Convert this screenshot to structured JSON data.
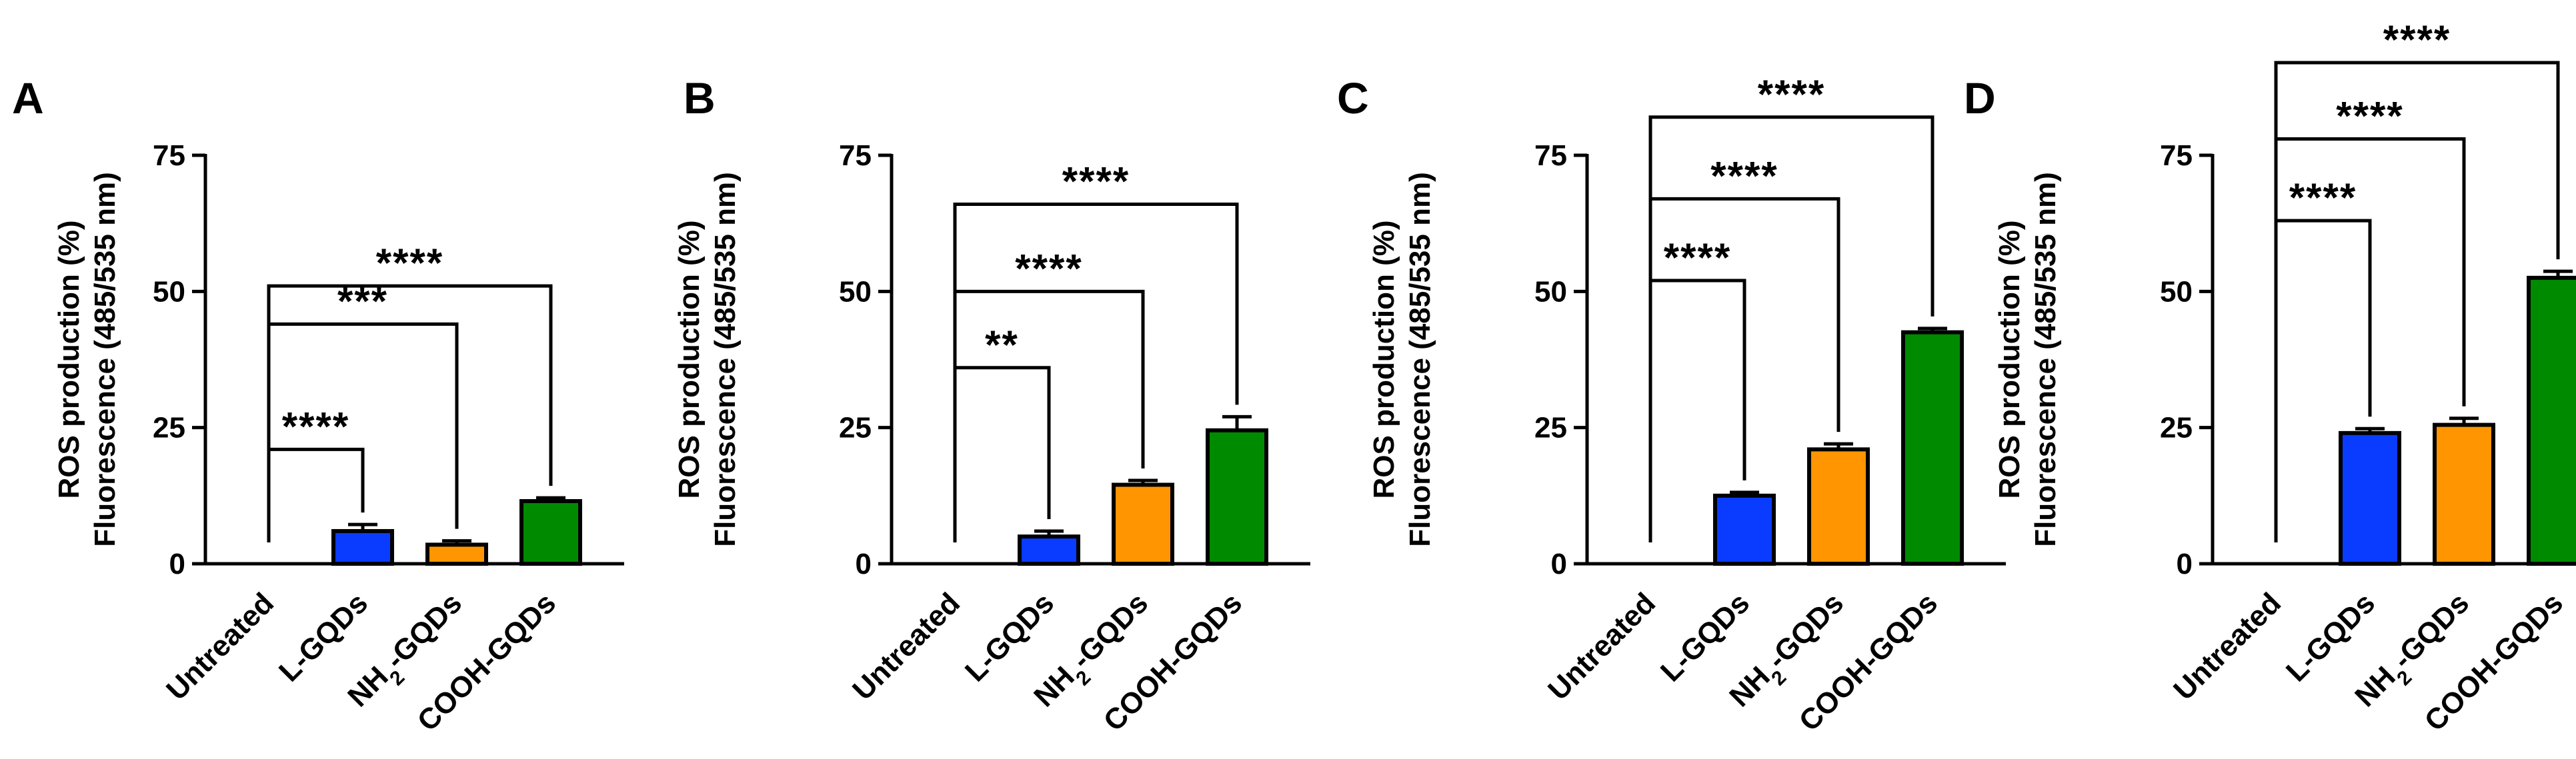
{
  "chart_data": [
    {
      "type": "bar",
      "panel": "A",
      "ylabel_line1": "ROS production (%)",
      "ylabel_line2": "Fluorescence (485/535 nm)",
      "categories": [
        {
          "main": "Untreated",
          "sub": "",
          "tail": ""
        },
        {
          "main": "L-GQDs",
          "sub": "",
          "tail": ""
        },
        {
          "main": "NH",
          "sub": "2",
          "tail": "-GQDs"
        },
        {
          "main": "COOH-GQDs",
          "sub": "",
          "tail": ""
        }
      ],
      "values": [
        0,
        6,
        3.5,
        11.5
      ],
      "errors": [
        0,
        1.2,
        0.7,
        0.6
      ],
      "colors": [
        "#ffffff",
        "#0a3cff",
        "#ff9500",
        "#008a00"
      ],
      "ylim": [
        0,
        75
      ],
      "yticks": [
        0,
        25,
        50,
        75
      ],
      "comparisons": [
        {
          "from": 0,
          "to": 1,
          "y": 21,
          "label": "****"
        },
        {
          "from": 0,
          "to": 2,
          "y": 44,
          "label": "***"
        },
        {
          "from": 0,
          "to": 3,
          "y": 51,
          "label": "****"
        }
      ]
    },
    {
      "type": "bar",
      "panel": "B",
      "ylabel_line1": "ROS production (%)",
      "ylabel_line2": "Fluorescence (485/535 nm)",
      "categories": [
        {
          "main": "Untreated",
          "sub": "",
          "tail": ""
        },
        {
          "main": "L-GQDs",
          "sub": "",
          "tail": ""
        },
        {
          "main": "NH",
          "sub": "2",
          "tail": "-GQDs"
        },
        {
          "main": "COOH-GQDs",
          "sub": "",
          "tail": ""
        }
      ],
      "values": [
        0,
        5,
        14.5,
        24.5
      ],
      "errors": [
        0,
        1.0,
        0.8,
        2.5
      ],
      "colors": [
        "#ffffff",
        "#0a3cff",
        "#ff9500",
        "#008a00"
      ],
      "ylim": [
        0,
        75
      ],
      "yticks": [
        0,
        25,
        50,
        75
      ],
      "comparisons": [
        {
          "from": 0,
          "to": 1,
          "y": 36,
          "label": "**"
        },
        {
          "from": 0,
          "to": 2,
          "y": 50,
          "label": "****"
        },
        {
          "from": 0,
          "to": 3,
          "y": 66,
          "label": "****"
        }
      ]
    },
    {
      "type": "bar",
      "panel": "C",
      "ylabel_line1": "ROS production (%)",
      "ylabel_line2": "Fluorescence (485/535 nm)",
      "categories": [
        {
          "main": "Untreated",
          "sub": "",
          "tail": ""
        },
        {
          "main": "L-GQDs",
          "sub": "",
          "tail": ""
        },
        {
          "main": "NH",
          "sub": "2",
          "tail": "-GQDs"
        },
        {
          "main": "COOH-GQDs",
          "sub": "",
          "tail": ""
        }
      ],
      "values": [
        0,
        12.5,
        21,
        42.5
      ],
      "errors": [
        0,
        0.6,
        1.0,
        0.7
      ],
      "colors": [
        "#ffffff",
        "#0a3cff",
        "#ff9500",
        "#008a00"
      ],
      "ylim": [
        0,
        75
      ],
      "yticks": [
        0,
        25,
        50,
        75
      ],
      "comparisons": [
        {
          "from": 0,
          "to": 1,
          "y": 52,
          "label": "****"
        },
        {
          "from": 0,
          "to": 2,
          "y": 67,
          "label": "****"
        },
        {
          "from": 0,
          "to": 3,
          "y": 82,
          "label": "****"
        }
      ]
    },
    {
      "type": "bar",
      "panel": "D",
      "ylabel_line1": "ROS production (%)",
      "ylabel_line2": "Fluorescence (485/535 nm)",
      "categories": [
        {
          "main": "Untreated",
          "sub": "",
          "tail": ""
        },
        {
          "main": "L-GQDs",
          "sub": "",
          "tail": ""
        },
        {
          "main": "NH",
          "sub": "2",
          "tail": "-GQDs"
        },
        {
          "main": "COOH-GQDs",
          "sub": "",
          "tail": ""
        }
      ],
      "values": [
        0,
        24,
        25.5,
        52.5
      ],
      "errors": [
        0,
        0.8,
        1.2,
        1.2
      ],
      "colors": [
        "#ffffff",
        "#0a3cff",
        "#ff9500",
        "#008a00"
      ],
      "ylim": [
        0,
        75
      ],
      "yticks": [
        0,
        25,
        50,
        75
      ],
      "comparisons": [
        {
          "from": 0,
          "to": 1,
          "y": 63,
          "label": "****"
        },
        {
          "from": 0,
          "to": 2,
          "y": 78,
          "label": "****"
        },
        {
          "from": 0,
          "to": 3,
          "y": 92,
          "label": "****"
        }
      ]
    }
  ]
}
